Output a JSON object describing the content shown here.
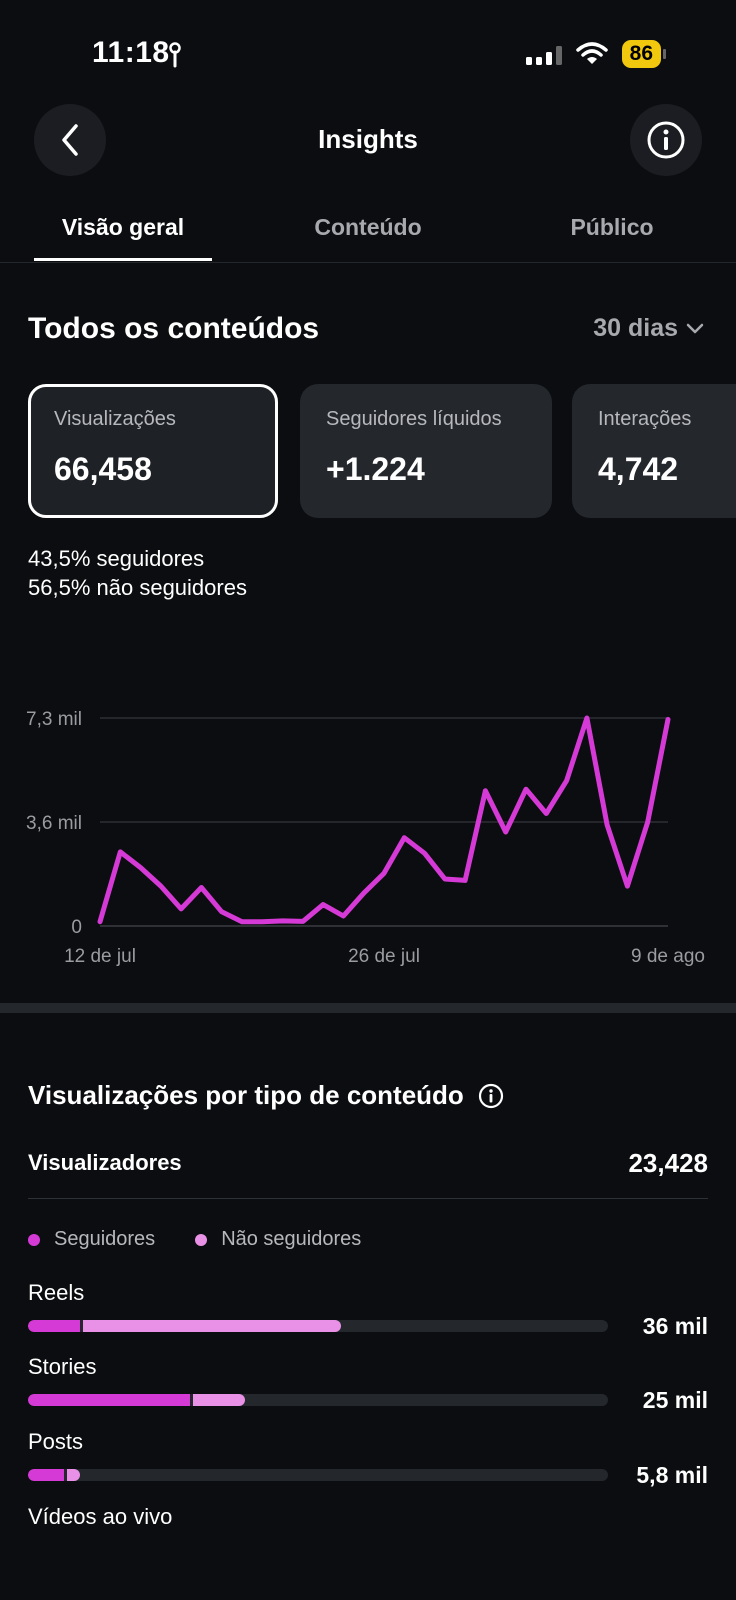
{
  "status_bar": {
    "time": "11:18",
    "battery": "86"
  },
  "header": {
    "title": "Insights",
    "back_icon": "chevron-left-icon",
    "info_icon": "info-circle-icon"
  },
  "tabs": [
    {
      "label": "Visão geral",
      "active": true
    },
    {
      "label": "Conteúdo",
      "active": false
    },
    {
      "label": "Público",
      "active": false
    }
  ],
  "section": {
    "title": "Todos os conteúdos",
    "range": "30 dias"
  },
  "metrics": [
    {
      "label": "Visualizações",
      "value": "66,458",
      "selected": true
    },
    {
      "label": "Seguidores líquidos",
      "value": "+1.224",
      "selected": false
    },
    {
      "label": "Interações",
      "value": "4,742",
      "selected": false
    }
  ],
  "split": [
    {
      "pct": "43,5%",
      "label": "seguidores"
    },
    {
      "pct": "56,5%",
      "label": "não seguidores"
    }
  ],
  "chart_data": {
    "type": "line",
    "y_ticks": [
      "7,3 mil",
      "3,6 mil",
      "0"
    ],
    "y_tick_values": [
      7300,
      3650,
      0
    ],
    "x_ticks": [
      "12 de jul",
      "26 de jul",
      "9 de ago"
    ],
    "x_tick_indices": [
      0,
      14,
      28
    ],
    "ylim": [
      0,
      7300
    ],
    "grid": true,
    "color": "#d63ad6",
    "series": [
      {
        "values": [
          150,
          2600,
          2050,
          1400,
          600,
          1350,
          500,
          150,
          150,
          180,
          160,
          750,
          350,
          1150,
          1850,
          3100,
          2550,
          1650,
          1600,
          4750,
          3300,
          4800,
          3950,
          5100,
          7300,
          3550,
          1400,
          3650,
          7250
        ]
      }
    ]
  },
  "section2": {
    "title": "Visualizações por tipo de conteúdo",
    "info_icon": "info-circle-icon",
    "viewers_label": "Visualizadores",
    "viewers_value": "23,428",
    "legend": [
      {
        "label": "Seguidores",
        "color": "#d63ad6"
      },
      {
        "label": "Não seguidores",
        "color": "#e991e6"
      }
    ],
    "types": [
      {
        "label": "Reels",
        "value": "36 mil",
        "followers": 0.09,
        "non_followers": 0.45
      },
      {
        "label": "Stories",
        "value": "25 mil",
        "followers": 0.28,
        "non_followers": 0.094
      },
      {
        "label": "Posts",
        "value": "5,8 mil",
        "followers": 0.062,
        "non_followers": 0.028
      },
      {
        "label": "Vídeos ao vivo",
        "value": "",
        "followers": 0,
        "non_followers": 0
      }
    ]
  }
}
